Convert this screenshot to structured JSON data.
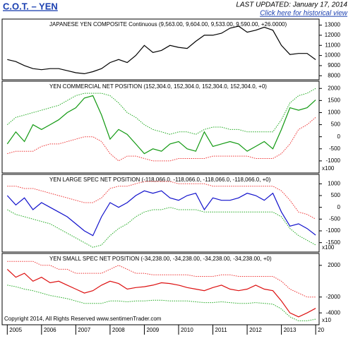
{
  "header": {
    "title": "C.O.T. – YEN",
    "updated": "LAST UPDATED:  January 17, 2014",
    "link": "Click here for historical view"
  },
  "footer": "Copyright 2014, All Rights Reserved  www.sentimenTrader.com",
  "chart_data": [
    {
      "type": "line",
      "title": "JAPANESE YEN COMPOSITE Continuous (9,563.00, 9,604.00, 9,533.00, 9,590.00, +26.0000)",
      "x": [
        2005,
        2005.25,
        2005.5,
        2005.75,
        2006,
        2006.25,
        2006.5,
        2006.75,
        2007,
        2007.25,
        2007.5,
        2007.75,
        2008,
        2008.25,
        2008.5,
        2008.75,
        2009,
        2009.25,
        2009.5,
        2009.75,
        2010,
        2010.25,
        2010.5,
        2010.75,
        2011,
        2011.25,
        2011.5,
        2011.75,
        2012,
        2012.25,
        2012.5,
        2012.75,
        2013,
        2013.25,
        2013.5,
        2013.75,
        2014
      ],
      "xlim": [
        2004.85,
        2014.1
      ],
      "ylim": [
        7600,
        13600
      ],
      "yticks": [
        8000,
        9000,
        10000,
        11000,
        12000,
        13000
      ],
      "series": [
        {
          "color": "#000000",
          "values": [
            9600,
            9400,
            9000,
            8700,
            8600,
            8700,
            8700,
            8500,
            8300,
            8200,
            8400,
            8700,
            9300,
            9600,
            9300,
            10000,
            11000,
            10300,
            10500,
            11000,
            10800,
            10700,
            11400,
            12000,
            12000,
            12200,
            12700,
            12900,
            12300,
            12500,
            12800,
            12500,
            11000,
            10100,
            10200,
            10200,
            9590
          ]
        }
      ]
    },
    {
      "type": "line",
      "title": "YEN COMMERCIAL NET POSITION (152,304.0, 152,304.0, 152,304.0, 152,304.0, +0)",
      "multiplier": "x100",
      "x": [
        2005,
        2005.25,
        2005.5,
        2005.75,
        2006,
        2006.25,
        2006.5,
        2006.75,
        2007,
        2007.25,
        2007.5,
        2007.75,
        2008,
        2008.25,
        2008.5,
        2008.75,
        2009,
        2009.25,
        2009.5,
        2009.75,
        2010,
        2010.25,
        2010.5,
        2010.75,
        2011,
        2011.25,
        2011.5,
        2011.75,
        2012,
        2012.25,
        2012.5,
        2012.75,
        2013,
        2013.25,
        2013.5,
        2013.75,
        2014
      ],
      "xlim": [
        2004.85,
        2014.1
      ],
      "ylim": [
        -1500,
        2300
      ],
      "yticks": [
        -1000,
        -500,
        0,
        500,
        1000,
        1500,
        2000
      ],
      "series": [
        {
          "color": "#22aa22",
          "dashed": true,
          "values": [
            500,
            800,
            900,
            1000,
            1100,
            1200,
            1300,
            1500,
            1700,
            1800,
            1800,
            1800,
            1700,
            1400,
            1000,
            800,
            500,
            300,
            200,
            100,
            200,
            200,
            100,
            300,
            400,
            400,
            300,
            300,
            200,
            200,
            200,
            200,
            700,
            1400,
            1700,
            1800,
            2000
          ]
        },
        {
          "color": "#ee3333",
          "dashed": true,
          "values": [
            -700,
            -600,
            -600,
            -600,
            -400,
            -300,
            -300,
            -200,
            -100,
            0,
            0,
            -200,
            -700,
            -1000,
            -800,
            -800,
            -900,
            -1000,
            -1000,
            -1000,
            -900,
            -900,
            -900,
            -900,
            -800,
            -800,
            -800,
            -800,
            -800,
            -900,
            -900,
            -900,
            -700,
            -300,
            300,
            500,
            800
          ]
        },
        {
          "color": "#119911",
          "values": [
            -300,
            200,
            -200,
            500,
            300,
            500,
            700,
            1000,
            1200,
            1600,
            1700,
            900,
            -100,
            300,
            100,
            -300,
            -700,
            -500,
            -600,
            -300,
            -200,
            -500,
            -600,
            200,
            -400,
            -300,
            -200,
            -300,
            -600,
            -400,
            -200,
            -500,
            300,
            1200,
            1100,
            1200,
            1523
          ]
        }
      ]
    },
    {
      "type": "line",
      "title": "YEN LARGE SPEC NET POSITION (-118,066.0, -118,066.0, -118,066.0, -118,066.0, +0)",
      "multiplier": "x100",
      "x": [
        2005,
        2005.25,
        2005.5,
        2005.75,
        2006,
        2006.25,
        2006.5,
        2006.75,
        2007,
        2007.25,
        2007.5,
        2007.75,
        2008,
        2008.25,
        2008.5,
        2008.75,
        2009,
        2009.25,
        2009.5,
        2009.75,
        2010,
        2010.25,
        2010.5,
        2010.75,
        2011,
        2011.25,
        2011.5,
        2011.75,
        2012,
        2012.25,
        2012.5,
        2012.75,
        2013,
        2013.25,
        2013.5,
        2013.75,
        2014
      ],
      "xlim": [
        2004.85,
        2014.1
      ],
      "ylim": [
        -1900,
        1400
      ],
      "yticks": [
        -1500,
        -1000,
        -500,
        0,
        500,
        1000
      ],
      "series": [
        {
          "color": "#ee3333",
          "dashed": true,
          "values": [
            900,
            900,
            800,
            800,
            700,
            600,
            500,
            400,
            300,
            200,
            200,
            400,
            800,
            900,
            900,
            1000,
            1100,
            1100,
            1100,
            1100,
            1000,
            1000,
            1000,
            1000,
            900,
            900,
            900,
            900,
            900,
            900,
            900,
            900,
            700,
            300,
            -200,
            -300,
            -500
          ]
        },
        {
          "color": "#22aa22",
          "dashed": true,
          "values": [
            -100,
            -300,
            -400,
            -500,
            -600,
            -700,
            -900,
            -1100,
            -1300,
            -1500,
            -1700,
            -1600,
            -1200,
            -900,
            -700,
            -400,
            -200,
            -100,
            -100,
            0,
            -100,
            -100,
            -100,
            -200,
            -200,
            -200,
            -200,
            -200,
            -200,
            -200,
            -200,
            -200,
            -400,
            -900,
            -1200,
            -1400,
            -1600
          ]
        },
        {
          "color": "#1111cc",
          "values": [
            500,
            100,
            400,
            -100,
            200,
            0,
            -200,
            -400,
            -700,
            -1000,
            -1200,
            -400,
            200,
            0,
            200,
            500,
            700,
            600,
            700,
            400,
            300,
            500,
            600,
            -100,
            400,
            300,
            300,
            400,
            600,
            500,
            300,
            600,
            -200,
            -800,
            -700,
            -900,
            -1181
          ]
        }
      ]
    },
    {
      "type": "line",
      "title": "YEN SMALL SPEC NET POSITION (-34,238.00, -34,238.00, -34,238.00, -34,238.00, +0)",
      "multiplier": "x10",
      "x": [
        2005,
        2005.25,
        2005.5,
        2005.75,
        2006,
        2006.25,
        2006.5,
        2006.75,
        2007,
        2007.25,
        2007.5,
        2007.75,
        2008,
        2008.25,
        2008.5,
        2008.75,
        2009,
        2009.25,
        2009.5,
        2009.75,
        2010,
        2010.25,
        2010.5,
        2010.75,
        2011,
        2011.25,
        2011.5,
        2011.75,
        2012,
        2012.25,
        2012.5,
        2012.75,
        2013,
        2013.25,
        2013.5,
        2013.75,
        2014
      ],
      "xlim": [
        2004.85,
        2014.1
      ],
      "ylim": [
        -5500,
        3500
      ],
      "yticks": [
        -4000,
        -2000,
        2000
      ],
      "xticks": [
        2005,
        2006,
        2007,
        2008,
        2009,
        2010,
        2011,
        2012,
        2013,
        {
          "value": 2014,
          "label": "20"
        }
      ],
      "series": [
        {
          "color": "#ee3333",
          "dashed": true,
          "values": [
            2500,
            2500,
            2500,
            2500,
            2000,
            2000,
            1500,
            1500,
            1000,
            1000,
            1000,
            1000,
            1500,
            2000,
            1500,
            1000,
            1000,
            800,
            800,
            800,
            800,
            800,
            600,
            600,
            600,
            800,
            800,
            600,
            600,
            600,
            600,
            600,
            0,
            -1000,
            -1500,
            -2000,
            -2000
          ]
        },
        {
          "color": "#22aa22",
          "dashed": true,
          "values": [
            -500,
            -700,
            -1000,
            -1200,
            -1500,
            -1800,
            -2000,
            -2200,
            -2500,
            -2800,
            -2800,
            -2800,
            -2500,
            -2500,
            -2600,
            -2500,
            -2500,
            -2400,
            -2400,
            -2500,
            -2500,
            -2500,
            -2600,
            -2700,
            -2700,
            -2600,
            -2700,
            -2800,
            -2800,
            -2700,
            -2800,
            -2900,
            -3500,
            -4500,
            -5000,
            -5000,
            -4800
          ]
        },
        {
          "color": "#dd1111",
          "values": [
            1500,
            500,
            1000,
            0,
            500,
            -200,
            0,
            -500,
            -1000,
            -1500,
            -1200,
            -500,
            0,
            -300,
            -1000,
            -800,
            -700,
            -500,
            -200,
            -300,
            -500,
            -800,
            -1000,
            -1200,
            -800,
            -500,
            -1000,
            -1200,
            -1000,
            -500,
            -1000,
            -1200,
            -2500,
            -4000,
            -4500,
            -4000,
            -3424
          ]
        }
      ]
    }
  ]
}
